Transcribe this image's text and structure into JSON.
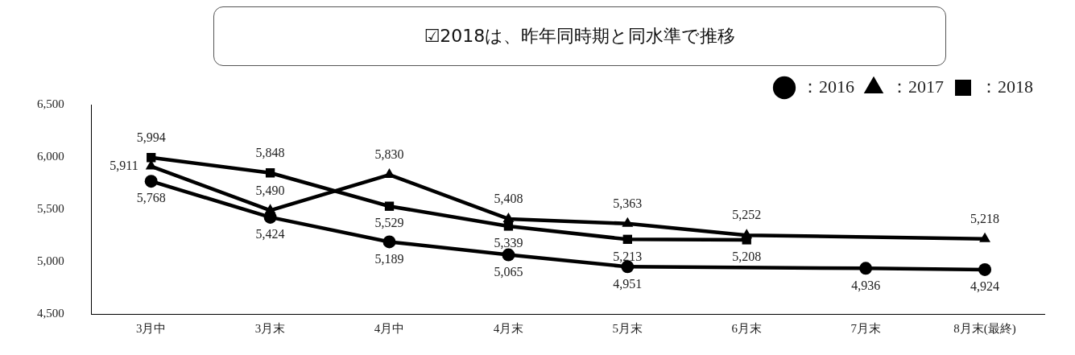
{
  "chart_data": {
    "type": "line",
    "title": "☑2018は、昨年同時期と同水準で推移",
    "categories": [
      "3月中",
      "3月末",
      "4月中",
      "4月末",
      "5月末",
      "6月末",
      "7月末",
      "8月末(最終)"
    ],
    "ylim": [
      4500,
      6500
    ],
    "yticks": [
      {
        "value": 4500,
        "label": "4,500"
      },
      {
        "value": 5000,
        "label": "5,000"
      },
      {
        "value": 5500,
        "label": "5,500"
      },
      {
        "value": 6000,
        "label": "6,000"
      },
      {
        "value": 6500,
        "label": "6,500"
      }
    ],
    "grid": false,
    "legend": "top right",
    "line_style": "solid",
    "series": [
      {
        "name": "：2016",
        "color": "#000000",
        "marker": "circle",
        "values": [
          5768,
          5424,
          5189,
          5065,
          4951,
          null,
          4936,
          4924
        ],
        "value_labels": [
          "5,768",
          "5,424",
          "5,189",
          "5,065",
          "4,951",
          null,
          "4,936",
          "4,924"
        ]
      },
      {
        "name": "：2017",
        "color": "#000000",
        "marker": "triangle",
        "values": [
          5911,
          5490,
          5830,
          5408,
          5363,
          5252,
          null,
          5218
        ],
        "value_labels": [
          "5,911",
          "5,490",
          "5,830",
          "5,408",
          "5,363",
          "5,252",
          null,
          "5,218"
        ]
      },
      {
        "name": "：2018",
        "color": "#000000",
        "marker": "square",
        "values": [
          5994,
          5848,
          5529,
          5339,
          5213,
          5208,
          null,
          null
        ],
        "value_labels": [
          "5,994",
          "5,848",
          "5,529",
          "5,339",
          "5,213",
          "5,208",
          null,
          null
        ]
      }
    ]
  }
}
